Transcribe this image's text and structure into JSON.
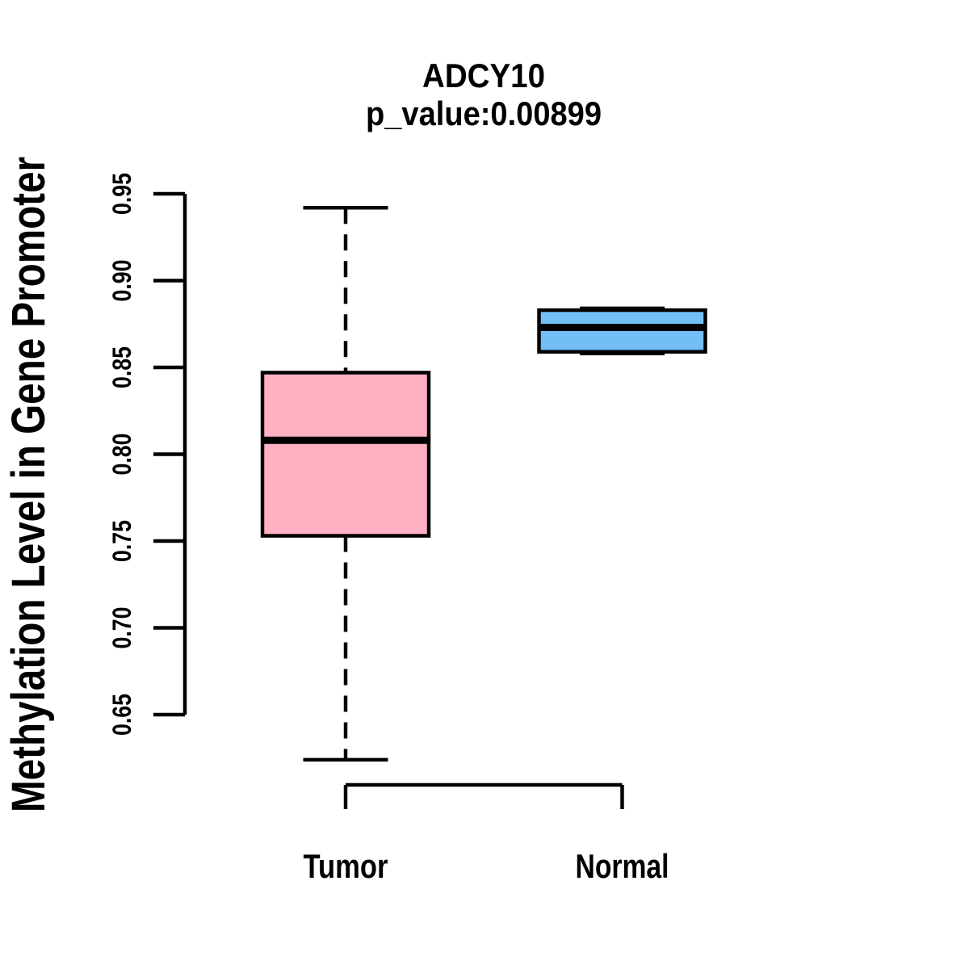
{
  "chart_data": {
    "type": "boxplot",
    "title": "ADCY10",
    "subtitle": "p_value:0.00899",
    "ylabel": "Methylation Level in Gene Promoter",
    "xlabel": "",
    "categories": [
      "Tumor",
      "Normal"
    ],
    "yticks": [
      0.65,
      0.7,
      0.75,
      0.8,
      0.85,
      0.9,
      0.95
    ],
    "ytick_labels": [
      "0.65",
      "0.70",
      "0.75",
      "0.80",
      "0.85",
      "0.90",
      "0.95"
    ],
    "ylim": [
      0.61,
      0.96
    ],
    "grid": false,
    "legend": "none",
    "whisker_style": "dashed",
    "series": [
      {
        "name": "Tumor",
        "box_color": "#FFB1C3",
        "whisker_low": 0.624,
        "q1": 0.753,
        "median": 0.808,
        "q3": 0.847,
        "whisker_high": 0.942
      },
      {
        "name": "Normal",
        "box_color": "#74BEF8",
        "whisker_low": 0.858,
        "q1": 0.859,
        "median": 0.873,
        "q3": 0.883,
        "whisker_high": 0.884
      }
    ]
  },
  "colors": {
    "box_border": "#000000",
    "axis": "#000000",
    "text": "#000000",
    "background": "#FFFFFF"
  }
}
